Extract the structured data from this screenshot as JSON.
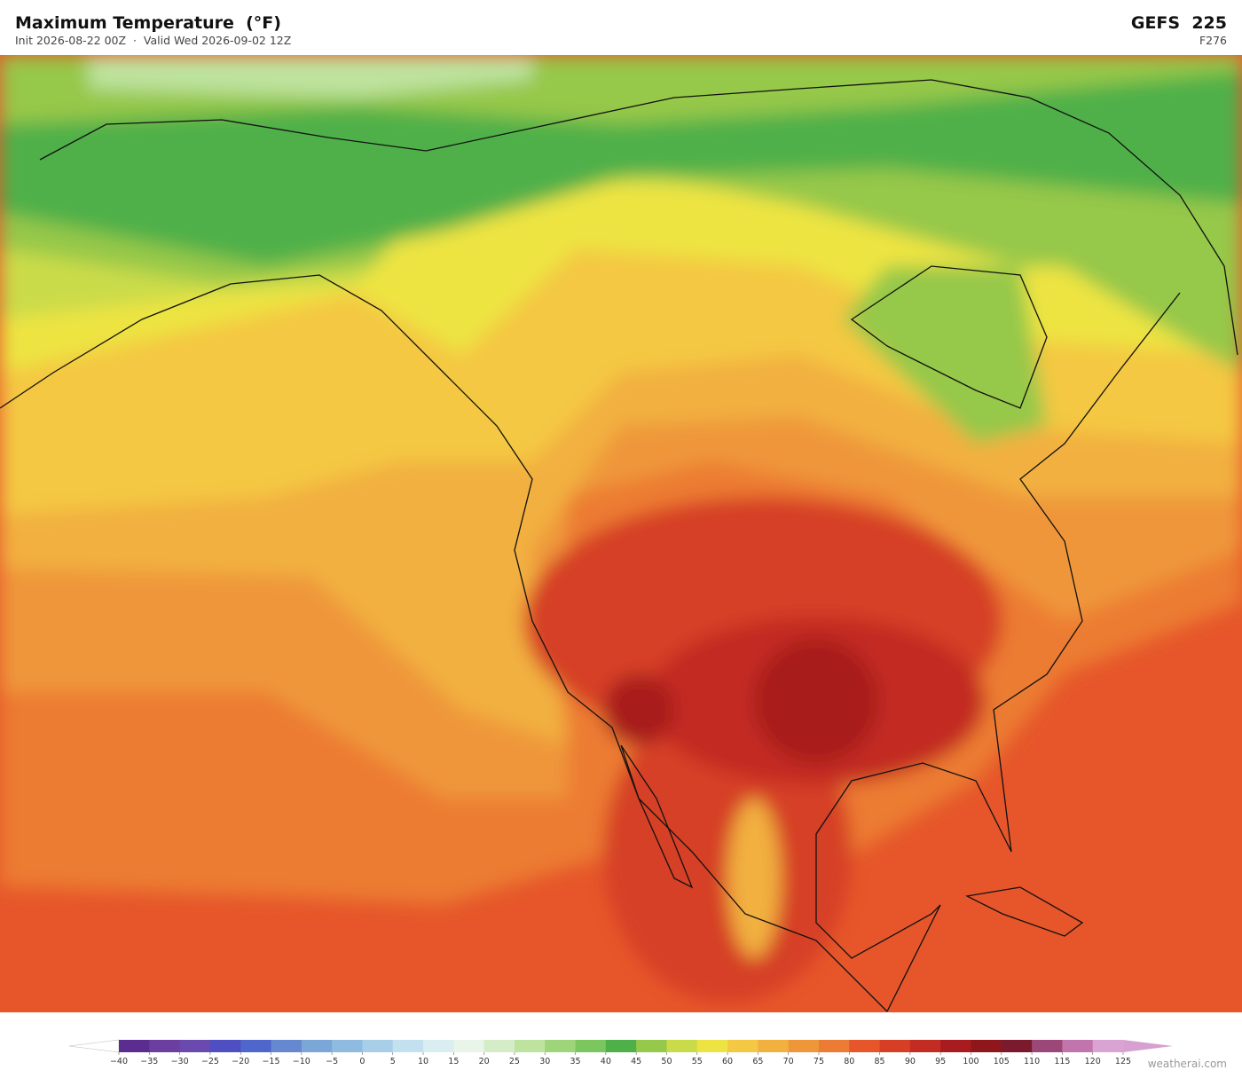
{
  "header": {
    "title": "Maximum Temperature  (°F)",
    "subtitle": "Init 2026-08-22 00Z  ·  Valid Wed 2026-09-02 12Z",
    "model": "GEFS  225",
    "forecast_hour": "F276"
  },
  "colorbar": {
    "ticks": [
      {
        "value": -40,
        "label": "−40"
      },
      {
        "value": -35,
        "label": "−35"
      },
      {
        "value": -30,
        "label": "−30"
      },
      {
        "value": -25,
        "label": "−25"
      },
      {
        "value": -20,
        "label": "−20"
      },
      {
        "value": -15,
        "label": "−15"
      },
      {
        "value": -10,
        "label": "−10"
      },
      {
        "value": -5,
        "label": "−5"
      },
      0,
      5,
      10,
      15,
      20,
      25,
      30,
      35,
      40,
      45,
      50,
      55,
      60,
      65,
      70,
      75,
      80,
      85,
      90,
      95,
      100,
      105,
      110,
      115,
      120,
      125
    ],
    "colors": [
      "#5b2d91",
      "#6b3fa0",
      "#6a4aae",
      "#4f4fc4",
      "#4f66cc",
      "#6688d0",
      "#7aa6d8",
      "#8fbbe0",
      "#a9cfe8",
      "#c2e0ee",
      "#daeef2",
      "#e8f5e8",
      "#d5ecc8",
      "#bde39e",
      "#9fd57a",
      "#7cc660",
      "#4fb04a",
      "#96c84a",
      "#cadb4a",
      "#ede443",
      "#f4c843",
      "#f2b03f",
      "#ef963a",
      "#ec7c33",
      "#e6562a",
      "#d63f26",
      "#c22c22",
      "#a81c1f",
      "#8f161b",
      "#7a1a2c",
      "#9b4878",
      "#c274ac",
      "#d9a4d2"
    ],
    "under_color": "#ffffff",
    "over_color": "#d6a0d0"
  },
  "watermark": "weatherai.com"
}
